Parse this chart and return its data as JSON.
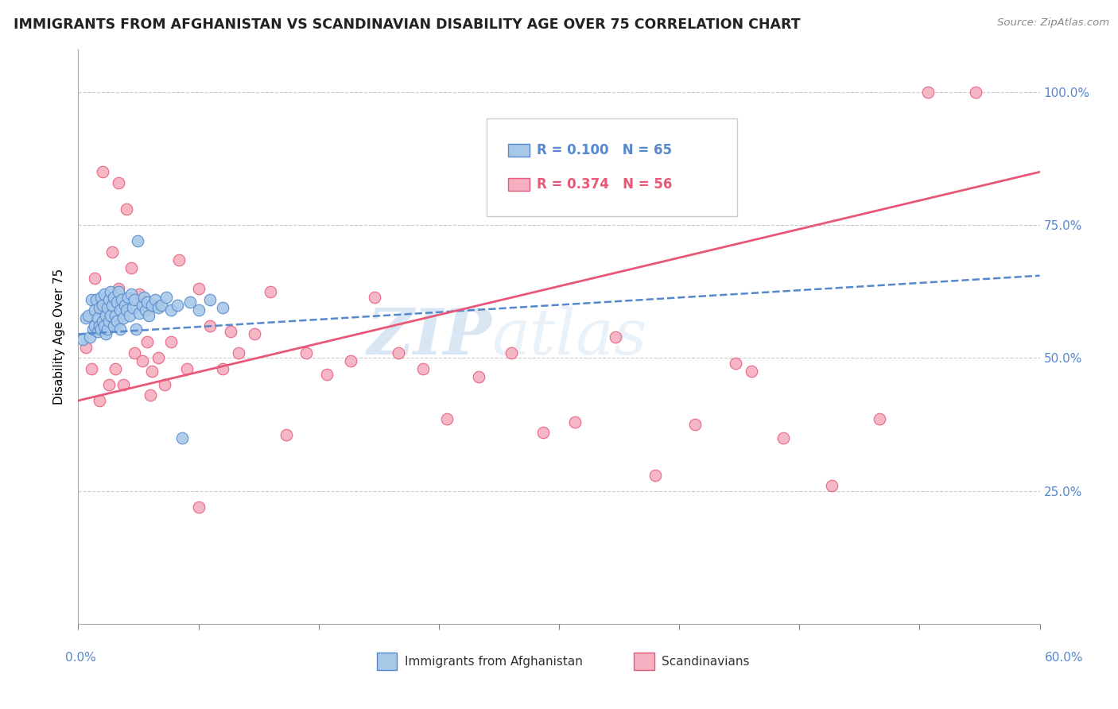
{
  "title": "IMMIGRANTS FROM AFGHANISTAN VS SCANDINAVIAN DISABILITY AGE OVER 75 CORRELATION CHART",
  "source": "Source: ZipAtlas.com",
  "ylabel": "Disability Age Over 75",
  "xmin": 0.0,
  "xmax": 0.6,
  "ymin": 0.0,
  "ymax": 1.08,
  "yticks": [
    0.0,
    0.25,
    0.5,
    0.75,
    1.0
  ],
  "ytick_labels_right": [
    "",
    "25.0%",
    "50.0%",
    "75.0%",
    "100.0%"
  ],
  "xticks": [
    0.0,
    0.075,
    0.15,
    0.225,
    0.3,
    0.375,
    0.45,
    0.525,
    0.6
  ],
  "color_afghanistan": "#a8c8e8",
  "color_scandinavian": "#f4b0c0",
  "color_line_afghanistan": "#5588cc",
  "color_line_scandinavian": "#e85878",
  "color_axis_right": "#5588cc",
  "watermark_zip": "ZIP",
  "watermark_atlas": "atlas",
  "afghanistan_x": [
    0.003,
    0.005,
    0.006,
    0.007,
    0.008,
    0.009,
    0.01,
    0.01,
    0.011,
    0.012,
    0.012,
    0.013,
    0.013,
    0.014,
    0.014,
    0.015,
    0.015,
    0.016,
    0.016,
    0.017,
    0.017,
    0.018,
    0.018,
    0.019,
    0.019,
    0.02,
    0.02,
    0.021,
    0.022,
    0.022,
    0.023,
    0.024,
    0.024,
    0.025,
    0.026,
    0.026,
    0.027,
    0.028,
    0.029,
    0.03,
    0.031,
    0.032,
    0.033,
    0.034,
    0.035,
    0.036,
    0.037,
    0.038,
    0.04,
    0.041,
    0.042,
    0.043,
    0.044,
    0.046,
    0.048,
    0.05,
    0.052,
    0.055,
    0.058,
    0.062,
    0.065,
    0.07,
    0.075,
    0.082,
    0.09
  ],
  "afghanistan_y": [
    0.535,
    0.575,
    0.58,
    0.54,
    0.61,
    0.555,
    0.59,
    0.56,
    0.61,
    0.575,
    0.55,
    0.595,
    0.56,
    0.615,
    0.555,
    0.6,
    0.57,
    0.62,
    0.56,
    0.58,
    0.545,
    0.595,
    0.555,
    0.61,
    0.57,
    0.625,
    0.58,
    0.6,
    0.615,
    0.56,
    0.58,
    0.605,
    0.57,
    0.625,
    0.59,
    0.555,
    0.61,
    0.575,
    0.6,
    0.59,
    0.615,
    0.58,
    0.62,
    0.595,
    0.61,
    0.555,
    0.72,
    0.585,
    0.6,
    0.615,
    0.59,
    0.605,
    0.58,
    0.6,
    0.61,
    0.595,
    0.6,
    0.615,
    0.59,
    0.6,
    0.35,
    0.605,
    0.59,
    0.61,
    0.595
  ],
  "scandinavian_x": [
    0.005,
    0.008,
    0.01,
    0.013,
    0.015,
    0.017,
    0.019,
    0.021,
    0.023,
    0.025,
    0.028,
    0.03,
    0.033,
    0.035,
    0.038,
    0.04,
    0.043,
    0.046,
    0.05,
    0.054,
    0.058,
    0.063,
    0.068,
    0.075,
    0.082,
    0.09,
    0.1,
    0.11,
    0.12,
    0.13,
    0.142,
    0.155,
    0.17,
    0.185,
    0.2,
    0.215,
    0.23,
    0.25,
    0.27,
    0.29,
    0.31,
    0.335,
    0.36,
    0.385,
    0.41,
    0.44,
    0.47,
    0.5,
    0.53,
    0.56,
    0.42,
    0.095,
    0.075,
    0.045,
    0.025,
    0.015
  ],
  "scandinavian_y": [
    0.52,
    0.48,
    0.65,
    0.42,
    0.59,
    0.56,
    0.45,
    0.7,
    0.48,
    0.63,
    0.45,
    0.78,
    0.67,
    0.51,
    0.62,
    0.495,
    0.53,
    0.475,
    0.5,
    0.45,
    0.53,
    0.685,
    0.48,
    0.63,
    0.56,
    0.48,
    0.51,
    0.545,
    0.625,
    0.355,
    0.51,
    0.47,
    0.495,
    0.615,
    0.51,
    0.48,
    0.385,
    0.465,
    0.51,
    0.36,
    0.38,
    0.54,
    0.28,
    0.375,
    0.49,
    0.35,
    0.26,
    0.385,
    1.0,
    1.0,
    0.475,
    0.55,
    0.22,
    0.43,
    0.83,
    0.85
  ],
  "line_afg_x0": 0.0,
  "line_afg_y0": 0.545,
  "line_afg_x1": 0.6,
  "line_afg_y1": 0.655,
  "line_sca_x0": 0.0,
  "line_sca_y0": 0.42,
  "line_sca_x1": 0.6,
  "line_sca_y1": 0.85
}
